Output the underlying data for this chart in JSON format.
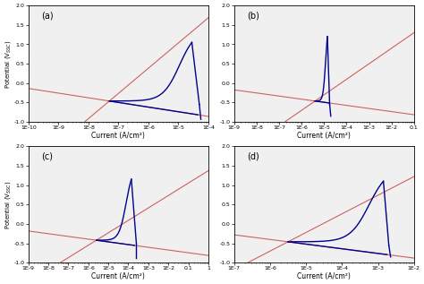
{
  "subplots": [
    {
      "label": "(a)",
      "xmin_exp": -10,
      "xmax_exp": -4,
      "xtick_exps": [
        -10,
        -9,
        -8,
        -7,
        -6,
        -5,
        -4
      ],
      "xtick_labels": [
        "1E-10",
        "1E-9",
        "1E-8",
        "1E-7",
        "1E-6",
        "1E-5",
        "1E-4"
      ],
      "corr_pot": -0.46,
      "corr_log": -7.3,
      "cat_slope": -0.12,
      "an_slope": 0.08,
      "passive_log_range": 1.8,
      "passive_pot_range": 0.0,
      "pitting_log": -4.55,
      "pitting_pot": 1.05,
      "return_log_end": -4.3,
      "return_pot_end": -0.55,
      "cat_end_log": -4.35,
      "cat_end_pot": -0.98,
      "tafel_cat_slope": -0.12,
      "tafel_an_slope": 0.65
    },
    {
      "label": "(b)",
      "xmin_exp": -9,
      "xmax_exp": -1,
      "xtick_exps": [
        -9,
        -8,
        -7,
        -6,
        -5,
        -4,
        -3,
        -2,
        -1
      ],
      "xtick_labels": [
        "1E-9",
        "1E-8",
        "1E-7",
        "1E-6",
        "1E-5",
        "1E-4",
        "1E-3",
        "1E-2",
        "0.1"
      ],
      "corr_pot": -0.46,
      "corr_log": -5.4,
      "pitting_log": -4.85,
      "pitting_pot": 1.2,
      "return_log_end": -4.75,
      "return_pot_end": -0.55,
      "cat_end_log": -4.8,
      "cat_end_pot": -0.9,
      "tafel_cat_slope": -0.08,
      "tafel_an_slope": 0.4
    },
    {
      "label": "(c)",
      "xmin_exp": -9,
      "xmax_exp": 0,
      "xtick_exps": [
        -9,
        -8,
        -7,
        -6,
        -5,
        -4,
        -3,
        -2,
        -1,
        0
      ],
      "xtick_labels": [
        "1E-9",
        "1E-8",
        "1E-7",
        "1E-6",
        "1E-5",
        "1E-4",
        "1E-3",
        "1E-2",
        "0.1",
        "1"
      ],
      "corr_pot": -0.42,
      "corr_log": -5.6,
      "pitting_log": -3.85,
      "pitting_pot": 1.15,
      "return_log_end": -3.6,
      "return_pot_end": -0.5,
      "cat_end_log": -3.7,
      "cat_end_pot": -0.92,
      "tafel_cat_slope": -0.07,
      "tafel_an_slope": 0.32
    },
    {
      "label": "(d)",
      "xmin_exp": -7,
      "xmax_exp": -2,
      "xtick_exps": [
        -7,
        -6,
        -5,
        -4,
        -3,
        -2
      ],
      "xtick_labels": [
        "1E-7",
        "1E-6",
        "1E-5",
        "1E-4",
        "1E-3",
        "1E-2"
      ],
      "corr_pot": -0.46,
      "corr_log": -5.5,
      "pitting_log": -2.85,
      "pitting_pot": 1.1,
      "return_log_end": -2.7,
      "return_pot_end": -0.55,
      "cat_end_log": -2.75,
      "cat_end_pot": -0.9,
      "tafel_cat_slope": -0.12,
      "tafel_an_slope": 0.48
    }
  ],
  "ylabel": "Potential (V$_{SSC}$)",
  "xlabel": "Current (A/cm²)",
  "ylim": [
    -1.0,
    2.0
  ],
  "yticks": [
    -1.0,
    -0.5,
    0.0,
    0.5,
    1.0,
    1.5,
    2.0
  ],
  "blue_color": "#00008B",
  "pink_color": "#d06060",
  "bg_color": "#f0f0f0"
}
